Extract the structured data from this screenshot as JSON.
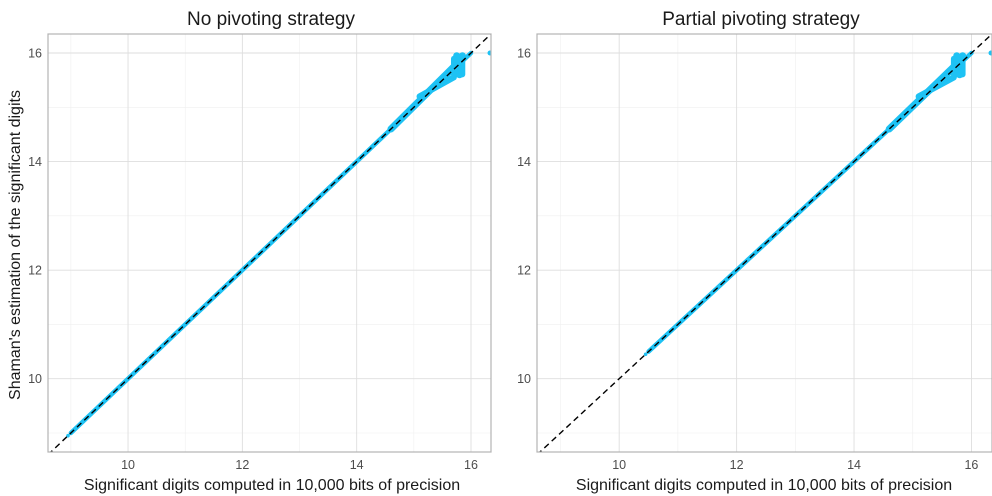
{
  "chart_data": [
    {
      "type": "scatter",
      "title": "No pivoting strategy",
      "xlabel": "Significant digits computed in 10,000 bits of precision",
      "ylabel": "Shaman's estimation of the significant digits",
      "xlim": [
        8.6,
        16.35
      ],
      "ylim": [
        8.65,
        16.35
      ],
      "x_ticks": [
        10,
        12,
        14,
        16
      ],
      "y_ticks": [
        10,
        12,
        14,
        16
      ],
      "grid": true,
      "reference_line": "y = x (dashed, black)",
      "point_color": "#1ec2f4",
      "point_range": [
        8.95,
        16.0
      ],
      "diagonal_band": [
        [
          9.0,
          9.0
        ],
        [
          16.0,
          16.0
        ]
      ],
      "saturation_cluster": {
        "x": [
          15.65,
          15.9
        ],
        "y": [
          15.55,
          15.95
        ]
      },
      "outlier": {
        "x": 16.35,
        "y": 16.0
      }
    },
    {
      "type": "scatter",
      "title": "Partial pivoting strategy",
      "xlabel": "Significant digits computed in 10,000 bits of precision",
      "ylabel": "",
      "xlim": [
        8.6,
        16.35
      ],
      "ylim": [
        8.65,
        16.35
      ],
      "x_ticks": [
        10,
        12,
        14,
        16
      ],
      "y_ticks": [
        10,
        12,
        14,
        16
      ],
      "grid": true,
      "reference_line": "y = x (dashed, black)",
      "point_color": "#1ec2f4",
      "point_range": [
        10.45,
        16.0
      ],
      "diagonal_band": [
        [
          10.5,
          10.5
        ],
        [
          16.0,
          16.0
        ]
      ],
      "saturation_cluster": {
        "x": [
          15.65,
          15.9
        ],
        "y": [
          15.55,
          15.95
        ]
      },
      "outlier": {
        "x": 16.35,
        "y": 16.0
      }
    }
  ]
}
